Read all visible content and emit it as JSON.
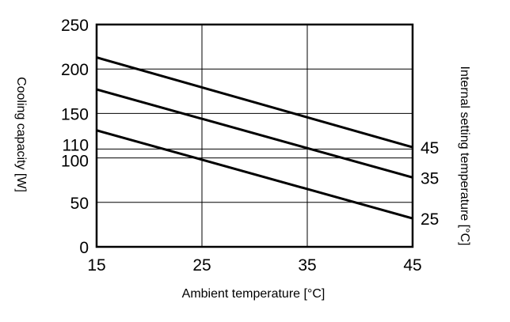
{
  "chart_data": {
    "type": "line",
    "title": "",
    "xlabel": "Ambient temperature [°C]",
    "ylabel": "Cooling capacity [W]",
    "y2label": "Internal setting temperature [°C]",
    "xlim": [
      15,
      45
    ],
    "ylim": [
      0,
      250
    ],
    "x_ticks": [
      "15",
      "25",
      "35",
      "45"
    ],
    "x_tick_values": [
      15,
      25,
      35,
      45
    ],
    "y_ticks": [
      "0",
      "50",
      "100",
      "110",
      "150",
      "200",
      "250"
    ],
    "y_tick_values": [
      0,
      50,
      100,
      110,
      150,
      200,
      250
    ],
    "grid": true,
    "series": [
      {
        "name": "45",
        "x": [
          15,
          45
        ],
        "y": [
          213,
          112
        ]
      },
      {
        "name": "35",
        "x": [
          15,
          45
        ],
        "y": [
          177,
          78
        ]
      },
      {
        "name": "25",
        "x": [
          15,
          45
        ],
        "y": [
          131,
          32
        ]
      }
    ]
  },
  "colors": {
    "line": "#000000",
    "grid": "#000000",
    "background": "#ffffff"
  }
}
